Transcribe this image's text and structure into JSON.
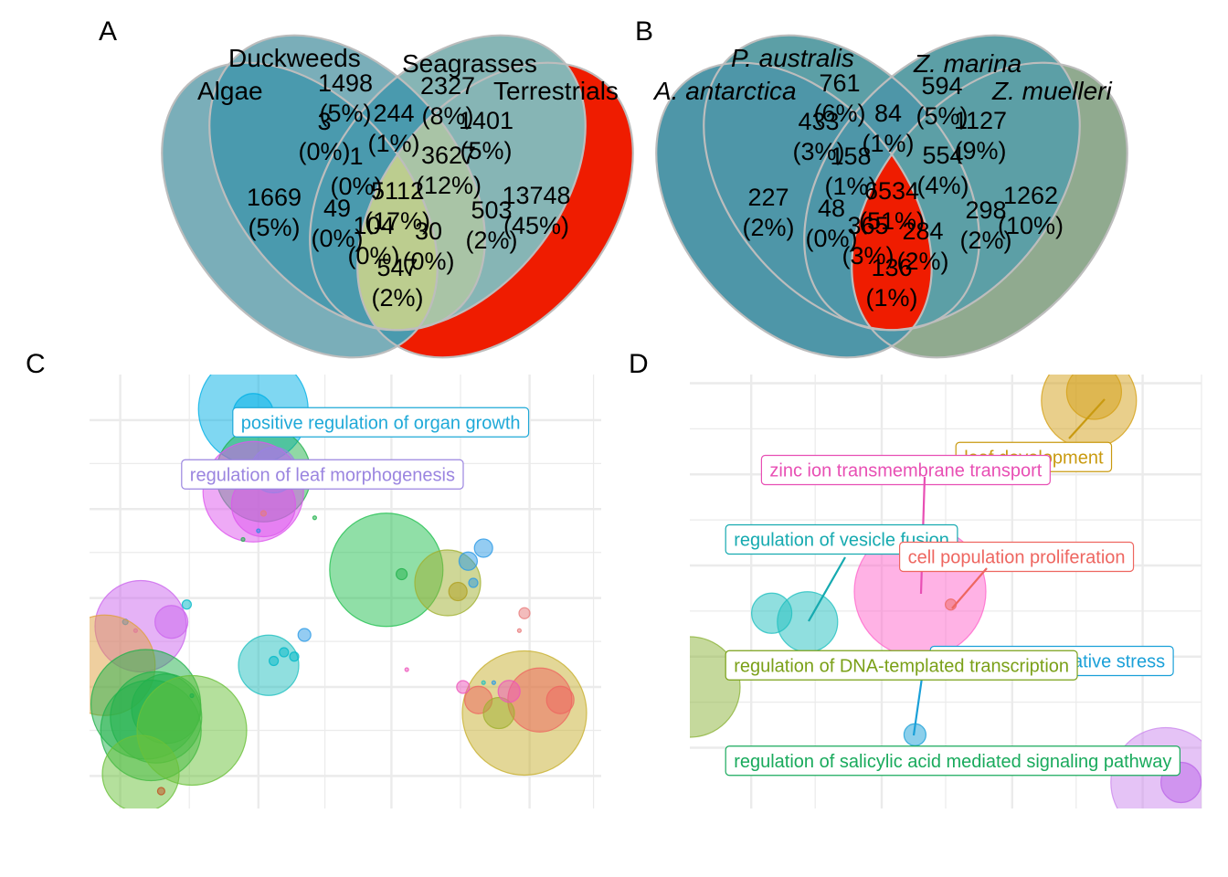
{
  "panels": [
    "A",
    "B",
    "C",
    "D"
  ],
  "chart_data": [
    {
      "panel": "A",
      "type": "venn",
      "sets": [
        "Algae",
        "Duckweeds",
        "Seagrasses",
        "Terrestrials"
      ],
      "regions": [
        {
          "sets": [
            "Algae"
          ],
          "count": "1669",
          "pct": "(5%)",
          "fill": "#7aaeb9"
        },
        {
          "sets": [
            "Duckweeds"
          ],
          "count": "1498",
          "pct": "(5%)",
          "fill": "#7aaeb9"
        },
        {
          "sets": [
            "Seagrasses"
          ],
          "count": "2327",
          "pct": "(8%)",
          "fill": "#86b5b5"
        },
        {
          "sets": [
            "Terrestrials"
          ],
          "count": "13748",
          "pct": "(45%)",
          "fill": "#ef1c00"
        },
        {
          "sets": [
            "Algae",
            "Duckweeds"
          ],
          "count": "3",
          "pct": "(0%)",
          "fill": "#4a9aae"
        },
        {
          "sets": [
            "Duckweeds",
            "Seagrasses"
          ],
          "count": "244",
          "pct": "(1%)",
          "fill": "#4a9aae"
        },
        {
          "sets": [
            "Seagrasses",
            "Terrestrials"
          ],
          "count": "1401",
          "pct": "(5%)",
          "fill": "#86b5b5"
        },
        {
          "sets": [
            "Algae",
            "Duckweeds",
            "Seagrasses"
          ],
          "count": "1",
          "pct": "(0%)",
          "fill": "#4a9aae"
        },
        {
          "sets": [
            "Duckweeds",
            "Seagrasses",
            "Terrestrials"
          ],
          "count": "3627",
          "pct": "(12%)",
          "fill": "#a9c4a6"
        },
        {
          "sets": [
            "Algae",
            "Duckweeds",
            "Seagrasses",
            "Terrestrials"
          ],
          "count": "5112",
          "pct": "(17%)",
          "fill": "#bccd8f"
        },
        {
          "sets": [
            "Algae",
            "Seagrasses"
          ],
          "count": "49",
          "pct": "(0%)",
          "fill": "#4a9aae"
        },
        {
          "sets": [
            "Duckweeds",
            "Terrestrials"
          ],
          "count": "503",
          "pct": "(2%)",
          "fill": "#4a9aae"
        },
        {
          "sets": [
            "Algae",
            "Seagrasses",
            "Terrestrials"
          ],
          "count": "104",
          "pct": "(0%)",
          "fill": "#4a9aae"
        },
        {
          "sets": [
            "Algae",
            "Duckweeds",
            "Terrestrials"
          ],
          "count": "30",
          "pct": "(0%)",
          "fill": "#4a9aae"
        },
        {
          "sets": [
            "Algae",
            "Terrestrials"
          ],
          "count": "547",
          "pct": "(2%)",
          "fill": "#4a9aae"
        }
      ]
    },
    {
      "panel": "B",
      "type": "venn",
      "sets": [
        "A. antarctica",
        "P. australis",
        "Z. marina",
        "Z. muelleri"
      ],
      "regions": [
        {
          "sets": [
            "A. antarctica"
          ],
          "count": "227",
          "pct": "(2%)",
          "fill": "#4e96a8"
        },
        {
          "sets": [
            "P. australis"
          ],
          "count": "761",
          "pct": "(6%)",
          "fill": "#5c9fa6"
        },
        {
          "sets": [
            "Z. marina"
          ],
          "count": "594",
          "pct": "(5%)",
          "fill": "#5c9fa6"
        },
        {
          "sets": [
            "Z. muelleri"
          ],
          "count": "1262",
          "pct": "(10%)",
          "fill": "#90aa8f"
        },
        {
          "sets": [
            "A. antarctica",
            "P. australis"
          ],
          "count": "433",
          "pct": "(3%)",
          "fill": "#4e96a8"
        },
        {
          "sets": [
            "P. australis",
            "Z. marina"
          ],
          "count": "84",
          "pct": "(1%)",
          "fill": "#4e96a8"
        },
        {
          "sets": [
            "Z. marina",
            "Z. muelleri"
          ],
          "count": "1127",
          "pct": "(9%)",
          "fill": "#5c9fa6"
        },
        {
          "sets": [
            "A. antarctica",
            "P. australis",
            "Z. marina"
          ],
          "count": "158",
          "pct": "(1%)",
          "fill": "#4e96a8"
        },
        {
          "sets": [
            "P. australis",
            "Z. marina",
            "Z. muelleri"
          ],
          "count": "554",
          "pct": "(4%)",
          "fill": "#5c9fa6"
        },
        {
          "sets": [
            "A. antarctica",
            "P. australis",
            "Z. marina",
            "Z. muelleri"
          ],
          "count": "6534",
          "pct": "(51%)",
          "fill": "#ef1c00"
        },
        {
          "sets": [
            "A. antarctica",
            "Z. marina"
          ],
          "count": "48",
          "pct": "(0%)",
          "fill": "#4e96a8"
        },
        {
          "sets": [
            "P. australis",
            "Z. muelleri"
          ],
          "count": "298",
          "pct": "(2%)",
          "fill": "#4e96a8"
        },
        {
          "sets": [
            "A. antarctica",
            "Z. marina",
            "Z. muelleri"
          ],
          "count": "365",
          "pct": "(3%)",
          "fill": "#4e96a8"
        },
        {
          "sets": [
            "A. antarctica",
            "P. australis",
            "Z. muelleri"
          ],
          "count": "284",
          "pct": "(2%)",
          "fill": "#4e96a8"
        },
        {
          "sets": [
            "A. antarctica",
            "Z. muelleri"
          ],
          "count": "136",
          "pct": "(1%)",
          "fill": "#4e96a8"
        }
      ]
    },
    {
      "panel": "C",
      "type": "scatter",
      "grid": true,
      "axes_visible": false,
      "xlim": [
        0,
        100
      ],
      "ylim": [
        0,
        100
      ],
      "points": [
        {
          "x": 32,
          "y": 92,
          "size": 60,
          "color": "#00b0e6"
        },
        {
          "x": 32,
          "y": 91,
          "size": 22,
          "color": "#00b0e6"
        },
        {
          "x": 34,
          "y": 77,
          "size": 52,
          "color": "#22b14c"
        },
        {
          "x": 32,
          "y": 73,
          "size": 55,
          "color": "#dd55ee"
        },
        {
          "x": 34,
          "y": 70,
          "size": 35,
          "color": "#dd55ee"
        },
        {
          "x": 36,
          "y": 78,
          "size": 25,
          "color": "#9b7fe6"
        },
        {
          "x": 30,
          "y": 62,
          "size": 2,
          "color": "#22b14c"
        },
        {
          "x": 33,
          "y": 64,
          "size": 2,
          "color": "#2a8ae6"
        },
        {
          "x": 34,
          "y": 68,
          "size": 3,
          "color": "#e87a7a"
        },
        {
          "x": 44,
          "y": 67,
          "size": 2,
          "color": "#22b14c"
        },
        {
          "x": 10,
          "y": 42,
          "size": 50,
          "color": "#cc66ee"
        },
        {
          "x": 16,
          "y": 43,
          "size": 18,
          "color": "#cc66ee"
        },
        {
          "x": 19,
          "y": 47,
          "size": 5,
          "color": "#00b8c8"
        },
        {
          "x": 7,
          "y": 43,
          "size": 3,
          "color": "#2a8ae6"
        },
        {
          "x": 9,
          "y": 41,
          "size": 2,
          "color": "#dd55ee"
        },
        {
          "x": 3,
          "y": 33,
          "size": 55,
          "color": "#e0a040"
        },
        {
          "x": 11,
          "y": 24,
          "size": 60,
          "color": "#22b14c"
        },
        {
          "x": 13,
          "y": 21,
          "size": 50,
          "color": "#22b14c"
        },
        {
          "x": 12,
          "y": 18,
          "size": 55,
          "color": "#22b14c"
        },
        {
          "x": 15,
          "y": 23,
          "size": 38,
          "color": "#22b14c"
        },
        {
          "x": 20,
          "y": 18,
          "size": 60,
          "color": "#6ac13a"
        },
        {
          "x": 10,
          "y": 8,
          "size": 42,
          "color": "#6ac13a"
        },
        {
          "x": 14,
          "y": 4,
          "size": 4,
          "color": "#c05020"
        },
        {
          "x": 20,
          "y": 26,
          "size": 2,
          "color": "#22b14c"
        },
        {
          "x": 35,
          "y": 33,
          "size": 33,
          "color": "#22c0c0"
        },
        {
          "x": 36,
          "y": 34,
          "size": 5,
          "color": "#00b8c8"
        },
        {
          "x": 38,
          "y": 36,
          "size": 5,
          "color": "#00b8c8"
        },
        {
          "x": 40,
          "y": 35,
          "size": 5,
          "color": "#00b8c8"
        },
        {
          "x": 42,
          "y": 40,
          "size": 7,
          "color": "#2a9ae6"
        },
        {
          "x": 58,
          "y": 55,
          "size": 62,
          "color": "#22c050"
        },
        {
          "x": 61,
          "y": 54,
          "size": 6,
          "color": "#22b14c"
        },
        {
          "x": 70,
          "y": 52,
          "size": 36,
          "color": "#a0b030"
        },
        {
          "x": 72,
          "y": 50,
          "size": 10,
          "color": "#b0a020"
        },
        {
          "x": 74,
          "y": 57,
          "size": 10,
          "color": "#2a9ae6"
        },
        {
          "x": 77,
          "y": 60,
          "size": 10,
          "color": "#2a9ae6"
        },
        {
          "x": 75,
          "y": 52,
          "size": 5,
          "color": "#2a9ae6"
        },
        {
          "x": 85,
          "y": 45,
          "size": 6,
          "color": "#e87a7a"
        },
        {
          "x": 84,
          "y": 41,
          "size": 2,
          "color": "#e87a7a"
        },
        {
          "x": 62,
          "y": 32,
          "size": 2,
          "color": "#ee55bb"
        },
        {
          "x": 85,
          "y": 22,
          "size": 68,
          "color": "#c8b030"
        },
        {
          "x": 88,
          "y": 25,
          "size": 35,
          "color": "#ee6660"
        },
        {
          "x": 92,
          "y": 25,
          "size": 15,
          "color": "#ee6660"
        },
        {
          "x": 76,
          "y": 25,
          "size": 15,
          "color": "#ee6660"
        },
        {
          "x": 80,
          "y": 22,
          "size": 17,
          "color": "#a0b030"
        },
        {
          "x": 82,
          "y": 27,
          "size": 12,
          "color": "#ee55bb"
        },
        {
          "x": 73,
          "y": 28,
          "size": 7,
          "color": "#ee55bb"
        },
        {
          "x": 79,
          "y": 29,
          "size": 2,
          "color": "#2a9ae6"
        },
        {
          "x": 77,
          "y": 29,
          "size": 2,
          "color": "#22c0c0"
        }
      ],
      "labels": [
        {
          "text": "positive regulation of organ growth",
          "color": "#1fa9d8",
          "x": 28,
          "y": 89
        },
        {
          "text": "regulation of leaf morphogenesis",
          "color": "#9b85e0",
          "x": 18,
          "y": 77
        }
      ]
    },
    {
      "panel": "D",
      "type": "scatter",
      "grid": true,
      "axes_visible": false,
      "xlim": [
        0,
        100
      ],
      "ylim": [
        0,
        100
      ],
      "points": [
        {
          "x": 78,
          "y": 94,
          "size": 52,
          "color": "#d4a017"
        },
        {
          "x": 79,
          "y": 96,
          "size": 30,
          "color": "#d4a017"
        },
        {
          "x": 45,
          "y": 50,
          "size": 72,
          "color": "#ff66cc"
        },
        {
          "x": 51,
          "y": 47,
          "size": 6,
          "color": "#ee6660"
        },
        {
          "x": 16,
          "y": 45,
          "size": 22,
          "color": "#22c0c0"
        },
        {
          "x": 23,
          "y": 43,
          "size": 33,
          "color": "#22c0c0"
        },
        {
          "x": 0,
          "y": 28,
          "size": 55,
          "color": "#8cb33a"
        },
        {
          "x": 44,
          "y": 17,
          "size": 12,
          "color": "#1aa0d8"
        },
        {
          "x": 93,
          "y": 6,
          "size": 60,
          "color": "#cc88ee"
        },
        {
          "x": 96,
          "y": 6,
          "size": 22,
          "color": "#bb66e8"
        }
      ],
      "labels": [
        {
          "text": "leaf development",
          "color": "#c99a10",
          "x": 52,
          "y": 81
        },
        {
          "text": "zinc ion transmembrane transport",
          "color": "#e84fb4",
          "x": 14,
          "y": 78
        },
        {
          "text": "regulation of vesicle fusion",
          "color": "#16aab0",
          "x": 7,
          "y": 62
        },
        {
          "text": "cell population proliferation",
          "color": "#ee6660",
          "x": 41,
          "y": 58
        },
        {
          "text": "response to oxidative stress",
          "color": "#1aa0d8",
          "x": 47,
          "y": 34
        },
        {
          "text": "regulation of DNA-templated transcription",
          "color": "#7aa018",
          "x": 7,
          "y": 33
        },
        {
          "text": "regulation of salicylic acid mediated signaling pathway",
          "color": "#19aa5c",
          "x": 7,
          "y": 11
        }
      ]
    }
  ]
}
